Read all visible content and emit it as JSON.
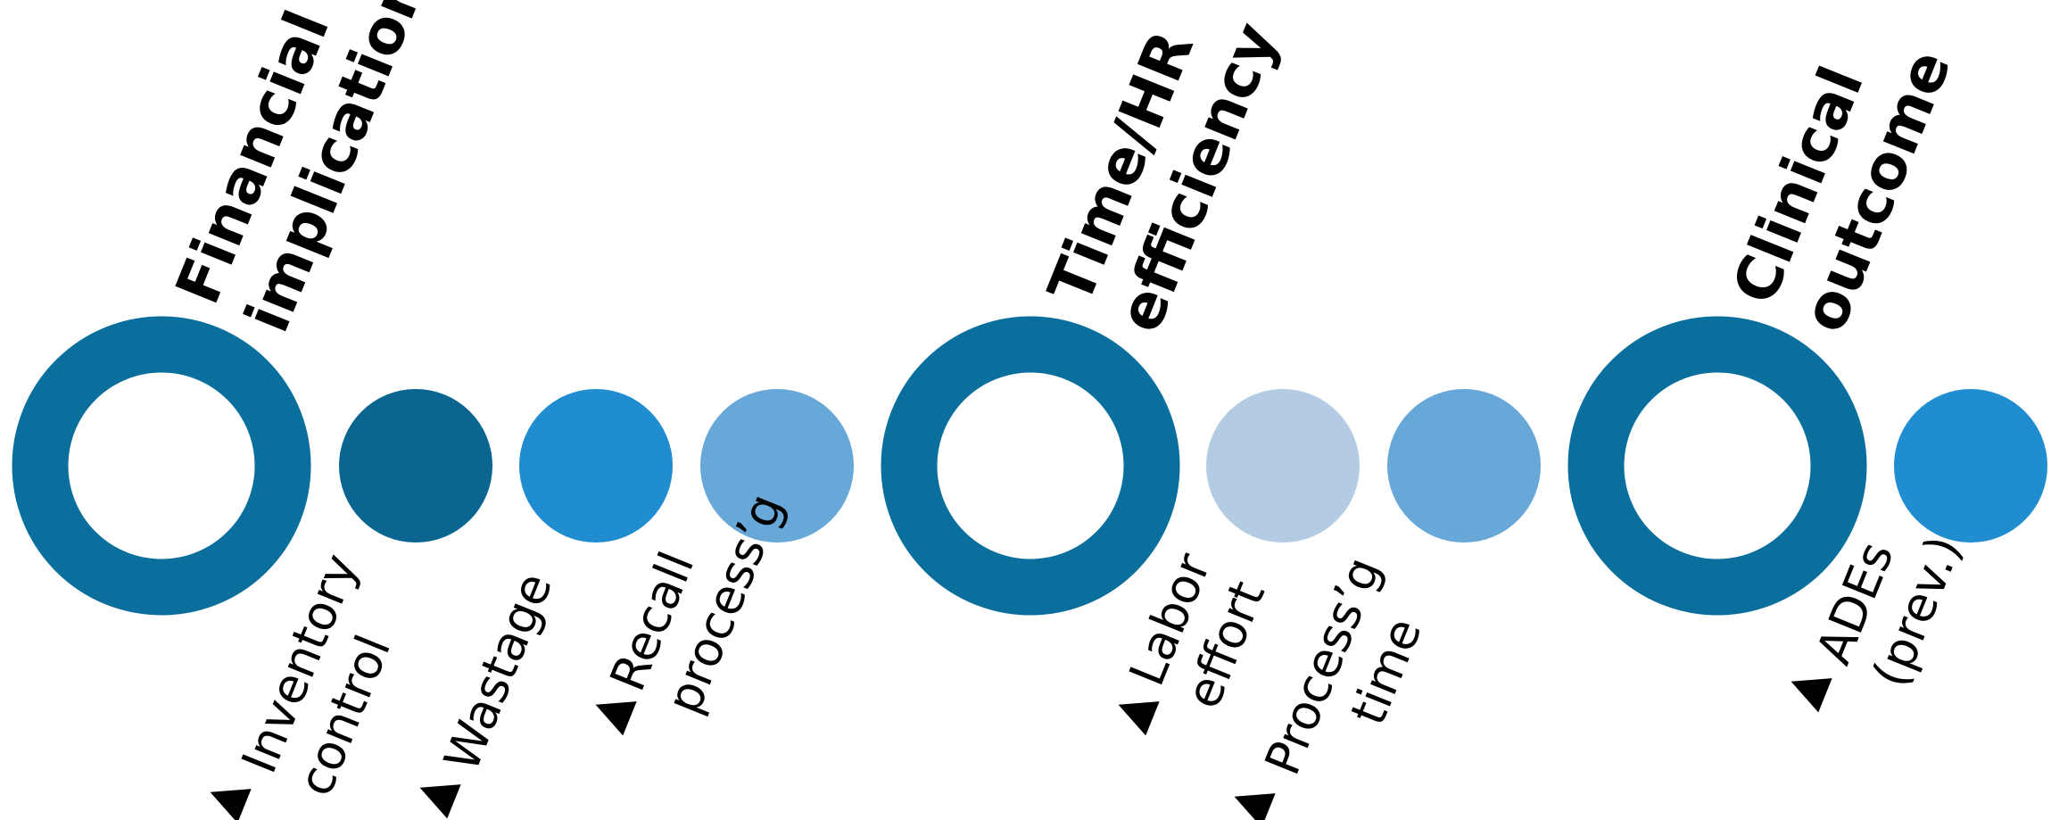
{
  "categories": [
    {
      "key": "financial",
      "lines": [
        "Financial",
        "implication"
      ],
      "ring_color": "#0b6f9e",
      "items": [
        {
          "key": "inventory",
          "arrow": "▲",
          "lines": [
            "Inventory",
            "control"
          ],
          "color": "#0a6590"
        },
        {
          "key": "wastage",
          "arrow": "▲",
          "lines": [
            "Wastage"
          ],
          "color": "#1f8dd0"
        },
        {
          "key": "recall",
          "arrow": "▲",
          "lines": [
            "Recall",
            "process’g"
          ],
          "color": "#67a8d9"
        }
      ]
    },
    {
      "key": "time",
      "lines": [
        "Time/HR",
        "efficiency"
      ],
      "ring_color": "#0b6f9e",
      "items": [
        {
          "key": "labor",
          "arrow": "▲",
          "lines": [
            "Labor",
            "effort"
          ],
          "color": "#b3cbe3"
        },
        {
          "key": "processing-time",
          "arrow": "▲",
          "lines": [
            "Process’g",
            "time"
          ],
          "color": "#67a8d9"
        }
      ]
    },
    {
      "key": "clinical",
      "lines": [
        "Clinical",
        "outcome"
      ],
      "ring_color": "#0b6f9e",
      "items": [
        {
          "key": "ades",
          "arrow": "▲",
          "lines": [
            "ADEs",
            "(prev.)"
          ],
          "color": "#1f8dd0"
        }
      ]
    }
  ]
}
